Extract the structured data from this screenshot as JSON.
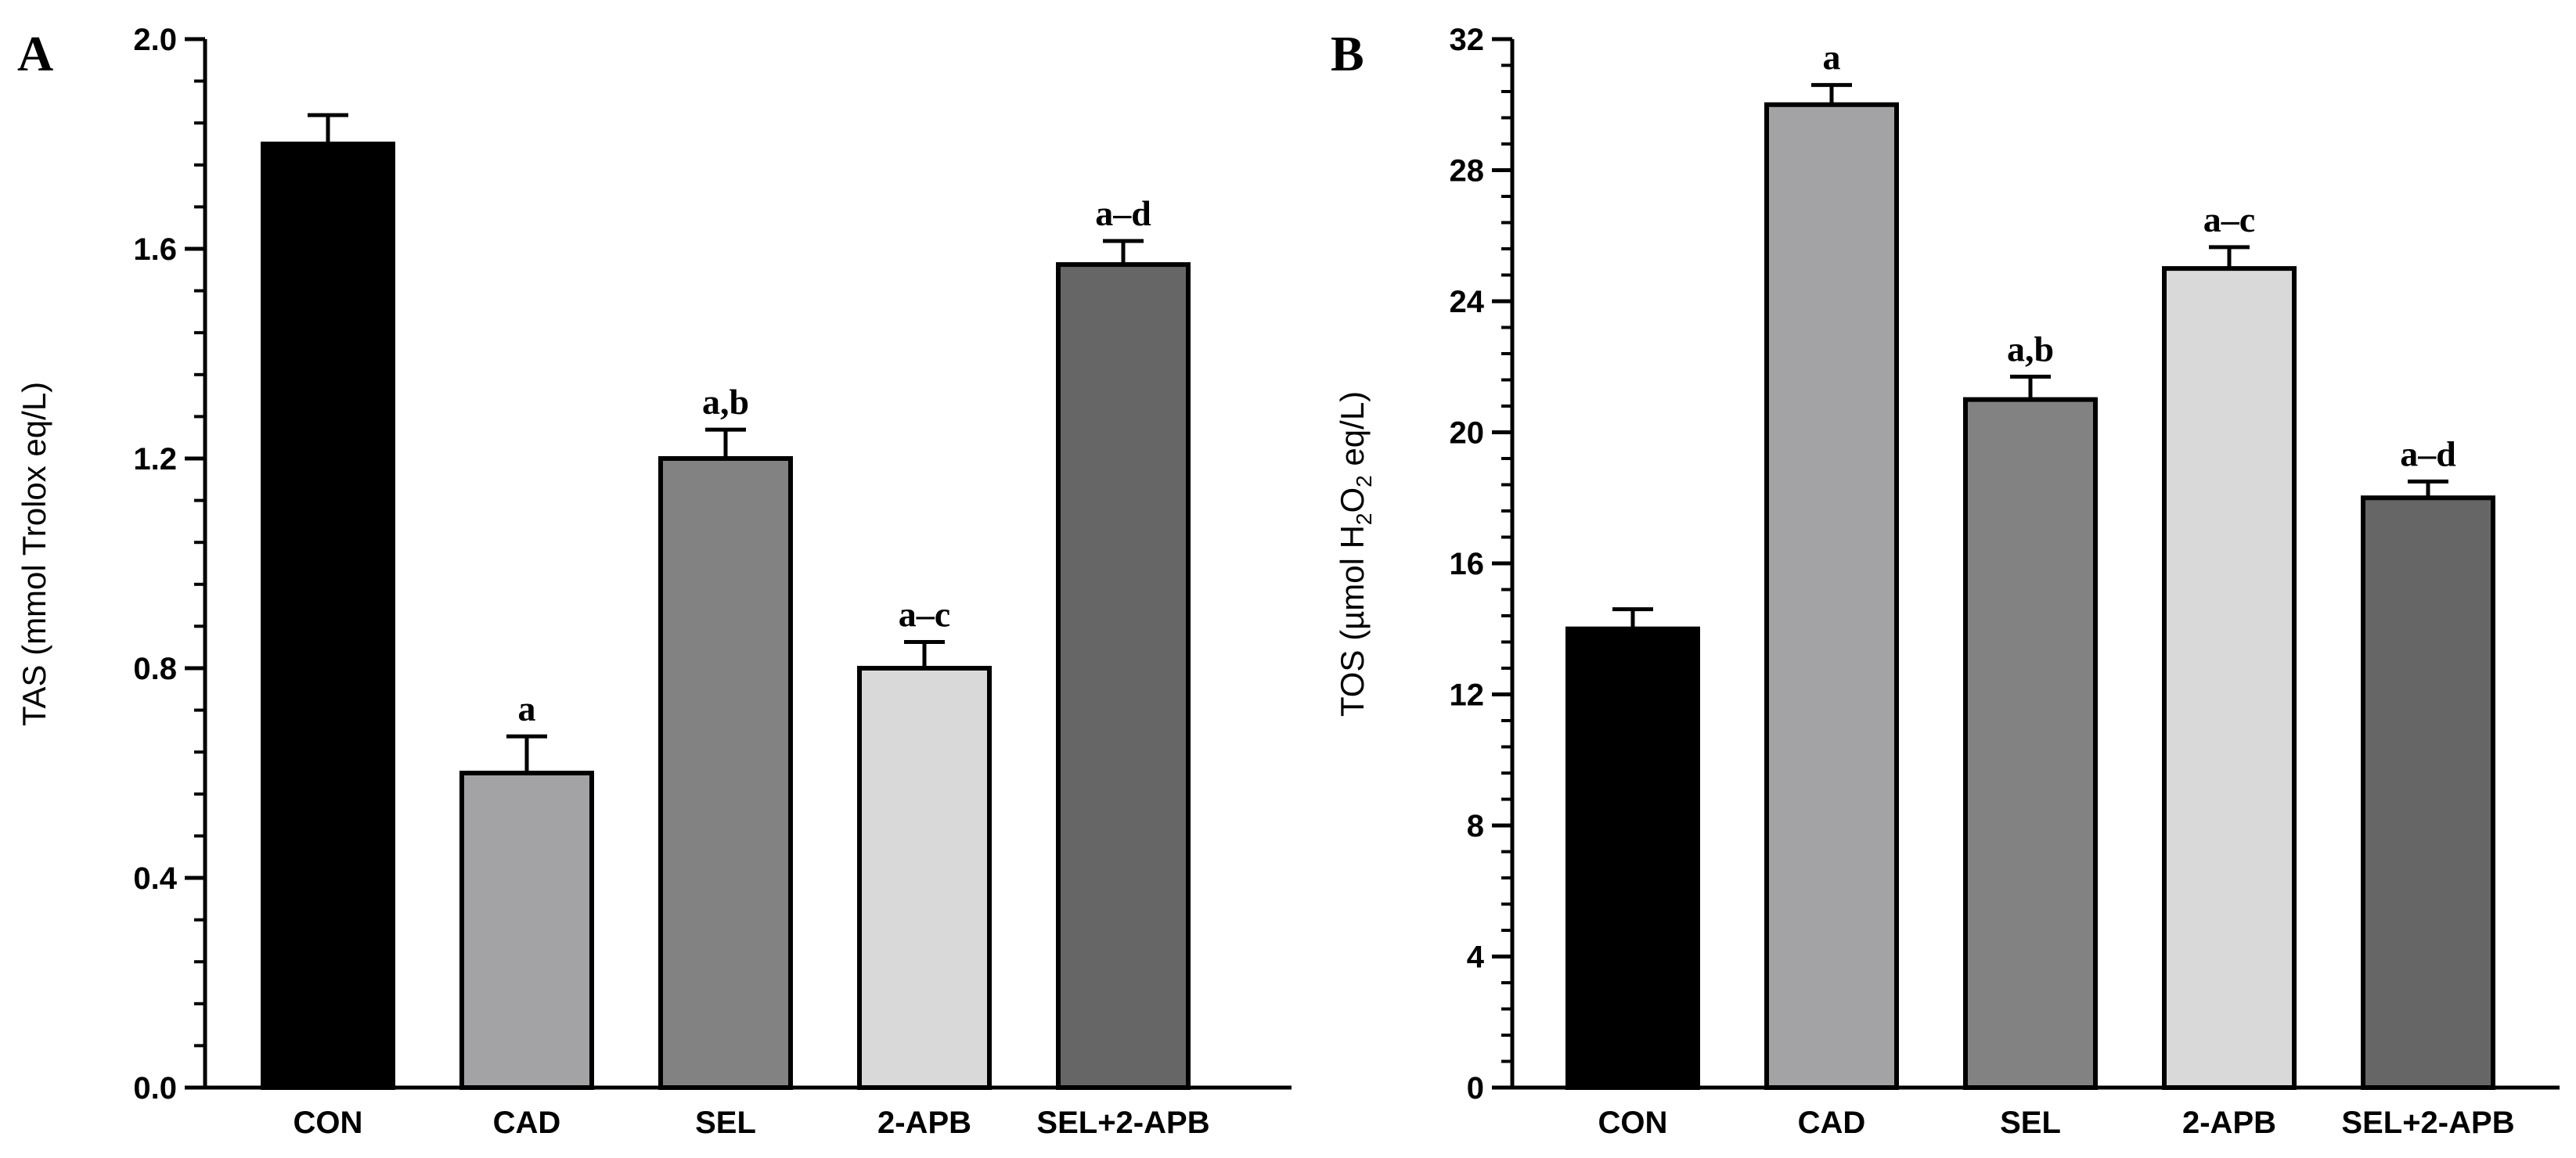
{
  "chart_data": [
    {
      "type": "bar",
      "panel": "A",
      "title": "",
      "xlabel": "",
      "ylabel": "TAS (mmol Trolox eq/L)",
      "ylim": [
        0,
        2.0
      ],
      "yticks": [
        "0.0",
        "0.4",
        "0.8",
        "1.2",
        "1.6",
        "2.0"
      ],
      "ytick_values": [
        0,
        0.4,
        0.8,
        1.2,
        1.6,
        2.0
      ],
      "minor_per_major": 4,
      "categories": [
        "CON",
        "CAD",
        "SEL",
        "2-APB",
        "SEL+2-APB"
      ],
      "values": [
        1.8,
        0.6,
        1.2,
        0.8,
        1.57
      ],
      "errors": [
        0.055,
        0.07,
        0.055,
        0.05,
        0.045
      ],
      "significance": [
        "",
        "a",
        "a,b",
        "a–c",
        "a–d"
      ],
      "colors": [
        "#000000",
        "#a3a3a6",
        "#828282",
        "#d9d9d9",
        "#666666"
      ]
    },
    {
      "type": "bar",
      "panel": "B",
      "title": "",
      "xlabel": "",
      "ylabel_parts": [
        "TOS (µmol H",
        "2",
        "O",
        "2",
        " eq/L)"
      ],
      "ylim": [
        0,
        32
      ],
      "yticks": [
        "0",
        "4",
        "8",
        "12",
        "16",
        "20",
        "24",
        "28",
        "32"
      ],
      "ytick_values": [
        0,
        4,
        8,
        12,
        16,
        20,
        24,
        28,
        32
      ],
      "minor_per_major": 4,
      "categories": [
        "CON",
        "CAD",
        "SEL",
        "2-APB",
        "SEL+2-APB"
      ],
      "values": [
        14,
        30,
        21,
        25,
        18
      ],
      "errors": [
        0.6,
        0.6,
        0.7,
        0.65,
        0.5
      ],
      "significance": [
        "",
        "a",
        "a,b",
        "a–c",
        "a–d"
      ],
      "colors": [
        "#000000",
        "#a3a3a6",
        "#828282",
        "#d9d9d9",
        "#666666"
      ]
    }
  ]
}
